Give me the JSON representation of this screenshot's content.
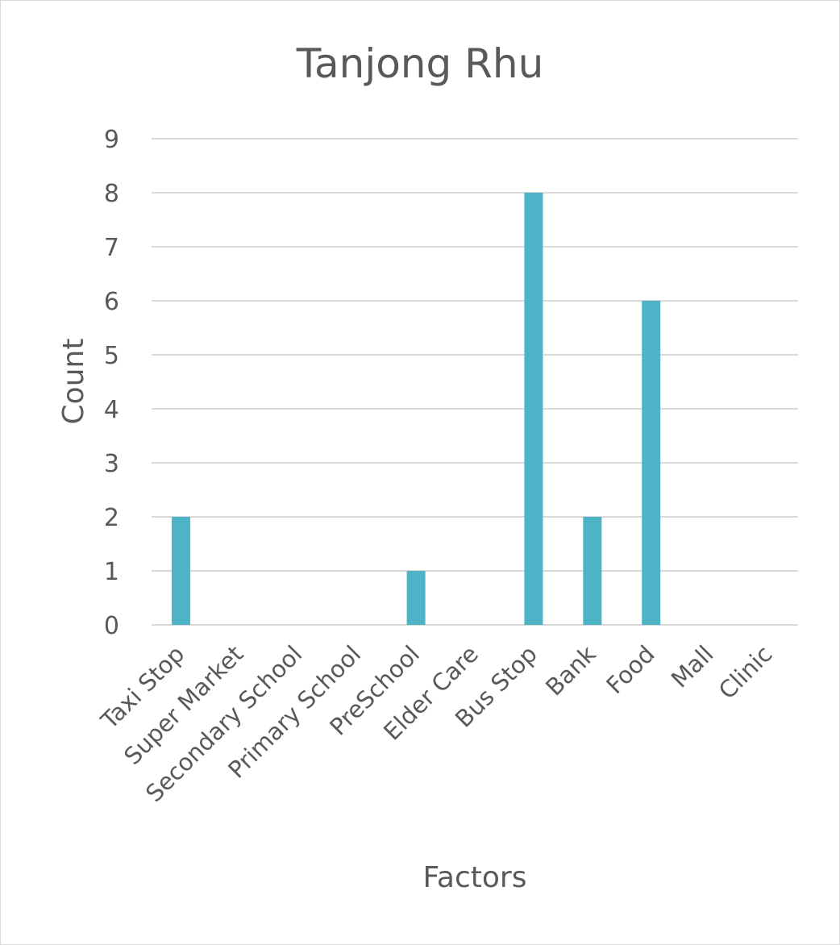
{
  "chart_data": {
    "type": "bar",
    "title": "Tanjong Rhu",
    "xlabel": "Factors",
    "ylabel": "Count",
    "categories": [
      "Taxi Stop",
      "Super Market",
      "Secondary School",
      "Primary School",
      "PreSchool",
      "Elder Care",
      "Bus Stop",
      "Bank",
      "Food",
      "Mall",
      "Clinic"
    ],
    "values": [
      2,
      0,
      0,
      0,
      1,
      0,
      8,
      2,
      6,
      0,
      0
    ],
    "ylim": [
      0,
      9
    ],
    "yticks": [
      "0",
      "1",
      "2",
      "3",
      "4",
      "5",
      "6",
      "7",
      "8",
      "9"
    ],
    "grid": true,
    "legend": "none",
    "bar_color": "#4fb3c8",
    "grid_color": "#d9d9d9",
    "text_color": "#595959"
  }
}
